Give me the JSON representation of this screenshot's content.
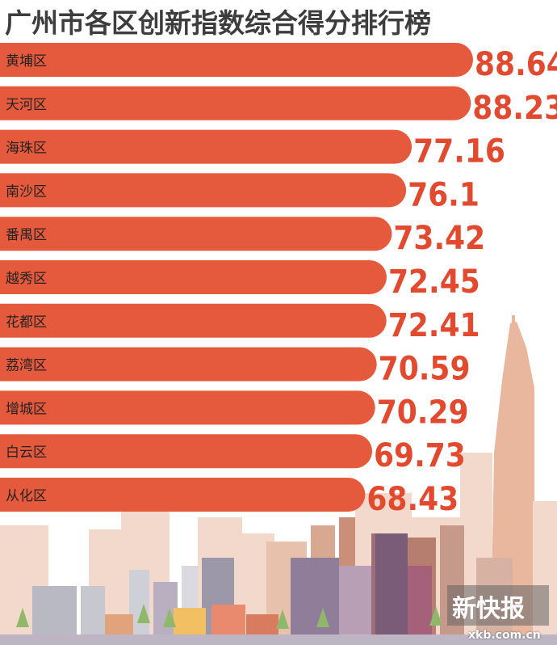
{
  "title": "广州市各区创新指数综合得分排行榜",
  "watermark": {
    "brand": "新快报",
    "url": "xkb.com.cn"
  },
  "colors": {
    "bar": "#e55a3c",
    "value_text": "#e24a30",
    "skyline_light": "#f3d9cc",
    "skyline_mid": "#e9b79e"
  },
  "chart_data": {
    "type": "bar",
    "orientation": "horizontal",
    "title": "广州市各区创新指数综合得分排行榜",
    "categories": [
      "黄埔区",
      "天河区",
      "海珠区",
      "南沙区",
      "番禺区",
      "越秀区",
      "花都区",
      "荔湾区",
      "增城区",
      "白云区",
      "从化区"
    ],
    "values": [
      88.64,
      88.23,
      77.16,
      76.1,
      73.42,
      72.45,
      72.41,
      70.59,
      70.29,
      69.73,
      68.43
    ],
    "value_labels": [
      "88.64",
      "88.23",
      "77.16",
      "76.1",
      "73.42",
      "72.45",
      "72.41",
      "70.59",
      "70.29",
      "69.73",
      "68.43"
    ],
    "xlabel": "",
    "ylabel": "",
    "grid": false,
    "legend": "none"
  }
}
